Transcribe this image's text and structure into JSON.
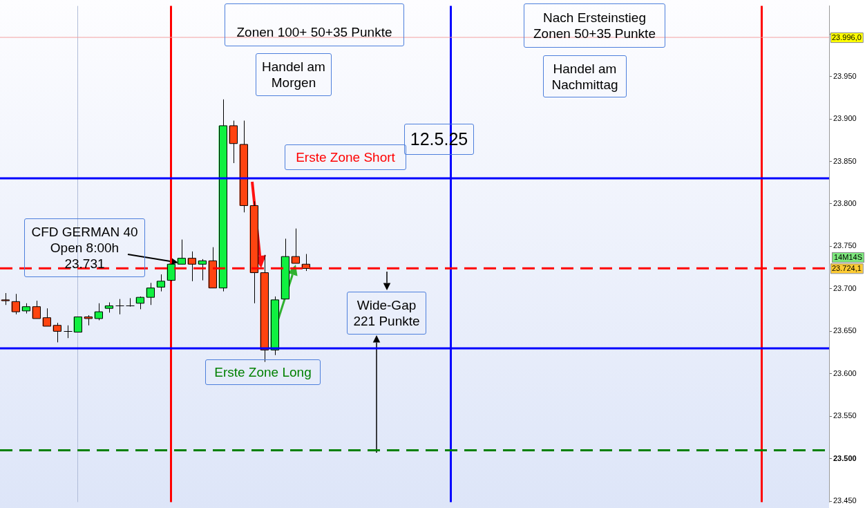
{
  "chart_data": {
    "type": "candlestick",
    "categories": [
      null,
      null,
      null,
      null,
      null,
      null,
      null,
      null,
      null,
      null,
      null,
      null,
      null,
      null,
      null,
      null,
      null,
      null,
      null,
      null,
      null,
      null,
      null,
      null,
      null,
      null,
      null,
      null,
      null,
      null,
      null,
      null,
      null,
      null,
      null,
      null,
      null,
      null,
      null,
      null,
      null,
      null,
      null,
      null,
      null,
      null,
      null,
      null,
      null,
      null,
      null,
      null,
      null,
      null,
      null,
      null,
      null,
      null,
      null,
      null,
      null,
      null,
      null,
      null,
      null,
      null,
      null,
      null,
      null,
      null,
      null,
      null,
      null,
      null,
      null,
      null,
      null,
      null,
      null,
      null
    ],
    "ohlc": [
      [
        23687,
        23695,
        23681,
        23686
      ],
      [
        23685,
        23694,
        23670,
        23673
      ],
      [
        23674,
        23683,
        23671,
        23679
      ],
      [
        23679,
        23686,
        23665,
        23665
      ],
      [
        23666,
        23677,
        23656,
        23656
      ],
      [
        23657,
        23660,
        23637,
        23650
      ],
      [
        23650,
        23657,
        23642,
        23650
      ],
      [
        23649,
        23667,
        23649,
        23667
      ],
      [
        23667,
        23669,
        23657,
        23665
      ],
      [
        23665,
        23683,
        23663,
        23673
      ],
      [
        23677,
        23684,
        23672,
        23680
      ],
      [
        23680,
        23688,
        23670,
        23680
      ],
      [
        23680,
        23689,
        23679,
        23680
      ],
      [
        23683,
        23691,
        23676,
        23690
      ],
      [
        23690,
        23707,
        23681,
        23701
      ],
      [
        23702,
        23717,
        23697,
        23709
      ],
      [
        23710,
        23730,
        23709,
        23729
      ],
      [
        23729,
        23758,
        23729,
        23736
      ],
      [
        23736,
        23744,
        23709,
        23729
      ],
      [
        23729,
        23735,
        23710,
        23733
      ],
      [
        23733,
        23749,
        23701,
        23701
      ],
      [
        23701,
        23923,
        23697,
        23892
      ],
      [
        23892,
        23898,
        23848,
        23871
      ],
      [
        23870,
        23898,
        23790,
        23798
      ],
      [
        23798,
        23803,
        23683,
        23719
      ],
      [
        23719,
        23740,
        23614,
        23628
      ],
      [
        23628,
        23691,
        23622,
        23687
      ],
      [
        23688,
        23759,
        23688,
        23738
      ],
      [
        23738,
        23771,
        23730,
        23730
      ],
      [
        23729,
        23741,
        23721,
        23724
      ],
      null,
      null,
      null,
      null,
      null,
      null,
      null,
      null,
      null,
      null,
      null,
      null,
      null,
      null,
      null,
      null,
      null,
      null,
      null,
      null,
      null,
      null,
      null,
      null,
      null,
      null,
      null,
      null,
      null,
      null,
      null,
      null,
      null,
      null,
      null,
      null,
      null,
      null,
      null,
      null,
      null,
      null,
      null,
      null,
      null,
      null,
      null,
      null,
      null,
      null
    ],
    "ylim": [
      23449,
      24033
    ],
    "yticks": [
      {
        "value": 23450,
        "label": "23.450"
      },
      {
        "value": 23500,
        "label": "23.500"
      },
      {
        "value": 23550,
        "label": "23.550"
      },
      {
        "value": 23600,
        "label": "23.600"
      },
      {
        "value": 23650,
        "label": "23.650"
      },
      {
        "value": 23700,
        "label": "23.700"
      },
      {
        "value": 23750,
        "label": "23.750"
      },
      {
        "value": 23800,
        "label": "23.800"
      },
      {
        "value": 23850,
        "label": "23.850"
      },
      {
        "value": 23900,
        "label": "23.900"
      },
      {
        "value": 23950,
        "label": "23.950"
      },
      {
        "value": 24000,
        "label": null
      }
    ],
    "tick_labels": "y",
    "grid": false,
    "legend": false,
    "ref_lines": [
      {
        "axis": "y",
        "value": 23996,
        "label": "23.996,0",
        "color": "#f4a0a0",
        "line_style": "solid"
      },
      {
        "axis": "y",
        "value": 23830,
        "color": "#0000ff",
        "line_style": "solid"
      },
      {
        "axis": "y",
        "value": 23630,
        "color": "#0000ff",
        "line_style": "solid"
      },
      {
        "axis": "y",
        "value": 23724.1,
        "label": "23.724,1",
        "color": "#ff0000",
        "line_style": "dashed"
      },
      {
        "axis": "y",
        "value": 23510,
        "color": "#008000",
        "line_style": "dashed"
      }
    ],
    "annotations": [
      "Zonen 100+ 50+35 Punkte",
      "Handel am Morgen",
      "Nach Ersteinstieg Zonen 50+35 Punkte",
      "Handel am Nachmittag",
      "12.5.25",
      "Erste Zone Short",
      "CFD GERMAN 40 Open 8:00h 23.731",
      "Wide-Gap 221 Punkte",
      "Erste Zone Long",
      "14M14S"
    ]
  }
}
